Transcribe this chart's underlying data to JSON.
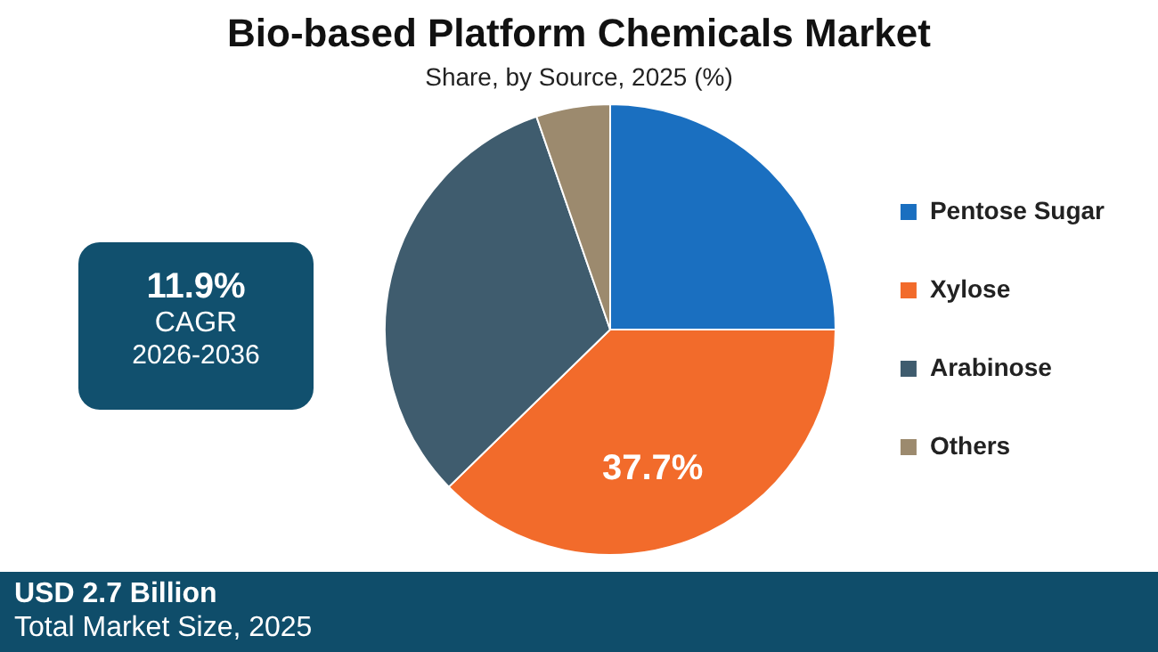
{
  "chart_data": {
    "type": "pie",
    "title": "Bio-based Platform Chemicals Market",
    "subtitle": "Share, by Source, 2025 (%)",
    "categories": [
      "Pentose Sugar",
      "Xylose",
      "Arabinose",
      "Others"
    ],
    "values": [
      25.0,
      37.7,
      32.0,
      5.3
    ],
    "colors": [
      "#1a6fc0",
      "#f26b2b",
      "#3f5c6e",
      "#9c8a6e"
    ],
    "value_labels": [
      null,
      "37.7%",
      null,
      null
    ],
    "legend": "right",
    "annotations": [
      "11.9%",
      "CAGR",
      "2026-2036",
      "USD 2.7 Billion",
      "Total Market Size, 2025"
    ]
  }
}
